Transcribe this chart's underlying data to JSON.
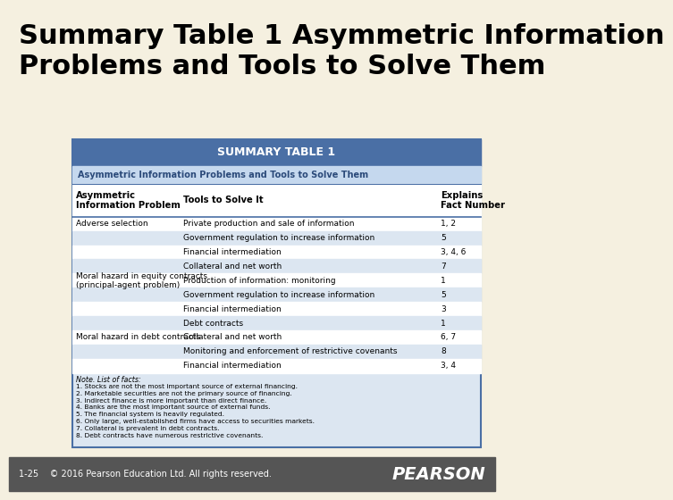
{
  "title": "Summary Table 1 Asymmetric Information\nProblems and Tools to Solve Them",
  "background_color": "#f5f0e0",
  "title_color": "#000000",
  "title_fontsize": 22,
  "table_header_bg": "#4a6fa5",
  "table_header_text": "#ffffff",
  "table_header_label": "SUMMARY TABLE 1",
  "table_subtitle": "Asymmetric Information Problems and Tools to Solve Them",
  "table_bg": "#dce6f1",
  "table_border_color": "#4a6fa5",
  "col_headers": [
    "Asymmetric\nInformation Problem",
    "Tools to Solve It",
    "Explains\nFact Number"
  ],
  "rows": [
    [
      "Adverse selection",
      "Private production and sale of information",
      "1, 2"
    ],
    [
      "",
      "Government regulation to increase information",
      "5"
    ],
    [
      "",
      "Financial intermediation",
      "3, 4, 6"
    ],
    [
      "",
      "Collateral and net worth",
      "7"
    ],
    [
      "Moral hazard in equity contracts\n(principal-agent problem)",
      "Production of information: monitoring",
      "1"
    ],
    [
      "",
      "Government regulation to increase information",
      "5"
    ],
    [
      "",
      "Financial intermediation",
      "3"
    ],
    [
      "",
      "Debt contracts",
      "1"
    ],
    [
      "Moral hazard in debt contracts",
      "Collateral and net worth",
      "6, 7"
    ],
    [
      "",
      "Monitoring and enforcement of restrictive covenants",
      "8"
    ],
    [
      "",
      "Financial intermediation",
      "3, 4"
    ]
  ],
  "notes_title": "Note. List of facts:",
  "notes": [
    "1. Stocks are not the most important source of external financing.",
    "2. Marketable securities are not the primary source of financing.",
    "3. Indirect finance is more important than direct finance.",
    "4. Banks are the most important source of external funds.",
    "5. The financial system is heavily regulated.",
    "6. Only large, well-established firms have access to securities markets.",
    "7. Collateral is prevalent in debt contracts.",
    "8. Debt contracts have numerous restrictive covenants."
  ],
  "footer_bg": "#555555",
  "footer_text": "1-25    © 2016 Pearson Education Ltd. All rights reserved.",
  "footer_brand": "PEARSON",
  "footer_text_color": "#ffffff",
  "row_colors": [
    "#ffffff",
    "#dce6f1"
  ],
  "subtitle_bg": "#c5d8ee",
  "subtitle_text_color": "#2b4a7a",
  "col_header_bg": "#ffffff",
  "line_color": "#4a6fa5"
}
